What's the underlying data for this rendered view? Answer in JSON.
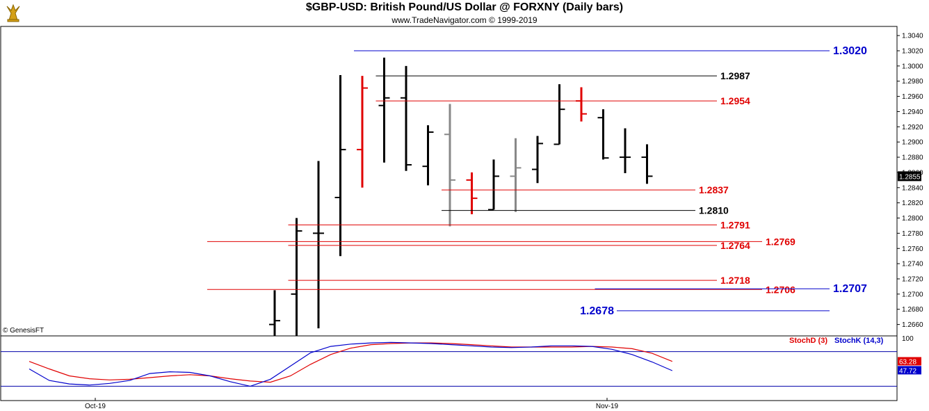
{
  "header": {
    "title": "$GBP-USD:  British Pound/US Dollar @ FORXNY  (Daily bars)",
    "subtitle": "www.TradeNavigator.com © 1999-2019"
  },
  "copyright": "© GenesisFT",
  "colors": {
    "up": "#000000",
    "red": "#e00000",
    "gray": "#888888",
    "blue": "#0000cc",
    "stochD": "#e00000",
    "stochK": "#0000cc"
  },
  "chart_data": [
    {
      "type": "ohlc",
      "ylim": [
        1.2645,
        1.3052
      ],
      "yticks": [
        "1.3040",
        "1.3020",
        "1.3000",
        "1.2980",
        "1.2960",
        "1.2940",
        "1.2920",
        "1.2900",
        "1.2880",
        "1.2860",
        "1.2840",
        "1.2820",
        "1.2800",
        "1.2780",
        "1.2760",
        "1.2740",
        "1.2720",
        "1.2700",
        "1.2680",
        "1.2660"
      ],
      "last_price": "1.2855",
      "bars": [
        {
          "h": 1.2705,
          "l": 1.2645,
          "o": 1.266,
          "c": 1.2665,
          "color": "black"
        },
        {
          "h": 1.28,
          "l": 1.2645,
          "o": 1.27,
          "c": 1.2783,
          "color": "black"
        },
        {
          "h": 1.2875,
          "l": 1.2655,
          "o": 1.278,
          "c": 1.278,
          "color": "black"
        },
        {
          "h": 1.2988,
          "l": 1.275,
          "o": 1.2827,
          "c": 1.289,
          "color": "black"
        },
        {
          "h": 1.2987,
          "l": 1.284,
          "o": 1.289,
          "c": 1.2971,
          "color": "red"
        },
        {
          "h": 1.3011,
          "l": 1.2873,
          "o": 1.2948,
          "c": 1.2958,
          "color": "black"
        },
        {
          "h": 1.3,
          "l": 1.2862,
          "o": 1.2958,
          "c": 1.287,
          "color": "black"
        },
        {
          "h": 1.2922,
          "l": 1.2843,
          "o": 1.2868,
          "c": 1.2913,
          "color": "black"
        },
        {
          "h": 1.295,
          "l": 1.2789,
          "o": 1.291,
          "c": 1.285,
          "color": "gray"
        },
        {
          "h": 1.286,
          "l": 1.2805,
          "o": 1.285,
          "c": 1.2826,
          "color": "red"
        },
        {
          "h": 1.2877,
          "l": 1.2811,
          "o": 1.2811,
          "c": 1.2855,
          "color": "black"
        },
        {
          "h": 1.2905,
          "l": 1.2808,
          "o": 1.2855,
          "c": 1.2866,
          "color": "gray"
        },
        {
          "h": 1.2908,
          "l": 1.2846,
          "o": 1.2864,
          "c": 1.2898,
          "color": "black"
        },
        {
          "h": 1.2976,
          "l": 1.2897,
          "o": 1.2897,
          "c": 1.2943,
          "color": "black"
        },
        {
          "h": 1.2972,
          "l": 1.2927,
          "o": 1.2954,
          "c": 1.2937,
          "color": "red"
        },
        {
          "h": 1.2943,
          "l": 1.2877,
          "o": 1.2932,
          "c": 1.2879,
          "color": "black"
        },
        {
          "h": 1.2918,
          "l": 1.2859,
          "o": 1.288,
          "c": 1.288,
          "color": "black"
        },
        {
          "h": 1.2897,
          "l": 1.2845,
          "o": 1.288,
          "c": 1.2855,
          "color": "black"
        }
      ],
      "levels": [
        {
          "value": 1.302,
          "label": "1.3020",
          "color": "blue",
          "from_bar": 4,
          "to": "far"
        },
        {
          "value": 1.2987,
          "label": "1.2987",
          "color": "black",
          "from_bar": 5,
          "to": "mid"
        },
        {
          "value": 1.2954,
          "label": "1.2954",
          "color": "red",
          "from_bar": 5,
          "to": "mid"
        },
        {
          "value": 1.2837,
          "label": "1.2837",
          "color": "red",
          "from_bar": 8,
          "to": "near"
        },
        {
          "value": 1.281,
          "label": "1.2810",
          "color": "black",
          "from_bar": 8,
          "to": "near"
        },
        {
          "value": 1.2791,
          "label": "1.2791",
          "color": "red",
          "from_bar": 1,
          "to": "mid"
        },
        {
          "value": 1.2769,
          "label": "1.2769",
          "color": "red",
          "from_bar": -3,
          "to": "far2"
        },
        {
          "value": 1.2764,
          "label": "1.2764",
          "color": "red",
          "from_bar": 1,
          "to": "mid"
        },
        {
          "value": 1.2718,
          "label": "1.2718",
          "color": "red",
          "from_bar": 1,
          "to": "mid"
        },
        {
          "value": 1.2706,
          "label": "1.2706",
          "color": "red",
          "from_bar": -3,
          "to": "far2"
        },
        {
          "value": 1.2707,
          "label": "1.2707",
          "color": "blue",
          "from_bar": 15,
          "to": "far"
        },
        {
          "value": 1.2678,
          "label": "1.2678",
          "color": "blue",
          "from_bar": 16,
          "to": "far",
          "label_left": true
        }
      ]
    },
    {
      "type": "line",
      "ylim": [
        0,
        100
      ],
      "ytick": "100",
      "x_labels": [
        "Oct-19",
        "Nov-19"
      ],
      "legend": [
        "StochD (3)",
        "StochK (14,3)"
      ],
      "series": [
        {
          "name": "StochD (3)",
          "last": "63.28",
          "values": [
            63,
            50,
            38,
            33,
            31,
            32,
            35,
            38,
            40,
            38,
            33,
            29,
            27,
            38,
            58,
            75,
            86,
            92,
            94,
            95,
            95,
            94,
            92,
            90,
            88,
            88,
            88,
            88,
            89,
            88,
            85,
            77,
            63
          ]
        },
        {
          "name": "StochK (14,3)",
          "last": "47.72",
          "values": [
            50,
            30,
            24,
            22,
            25,
            30,
            42,
            45,
            44,
            38,
            28,
            20,
            32,
            55,
            78,
            89,
            93,
            95,
            96,
            95,
            94,
            92,
            90,
            88,
            87,
            88,
            90,
            90,
            89,
            84,
            75,
            62,
            47
          ]
        }
      ],
      "refs": [
        80,
        20
      ]
    }
  ]
}
